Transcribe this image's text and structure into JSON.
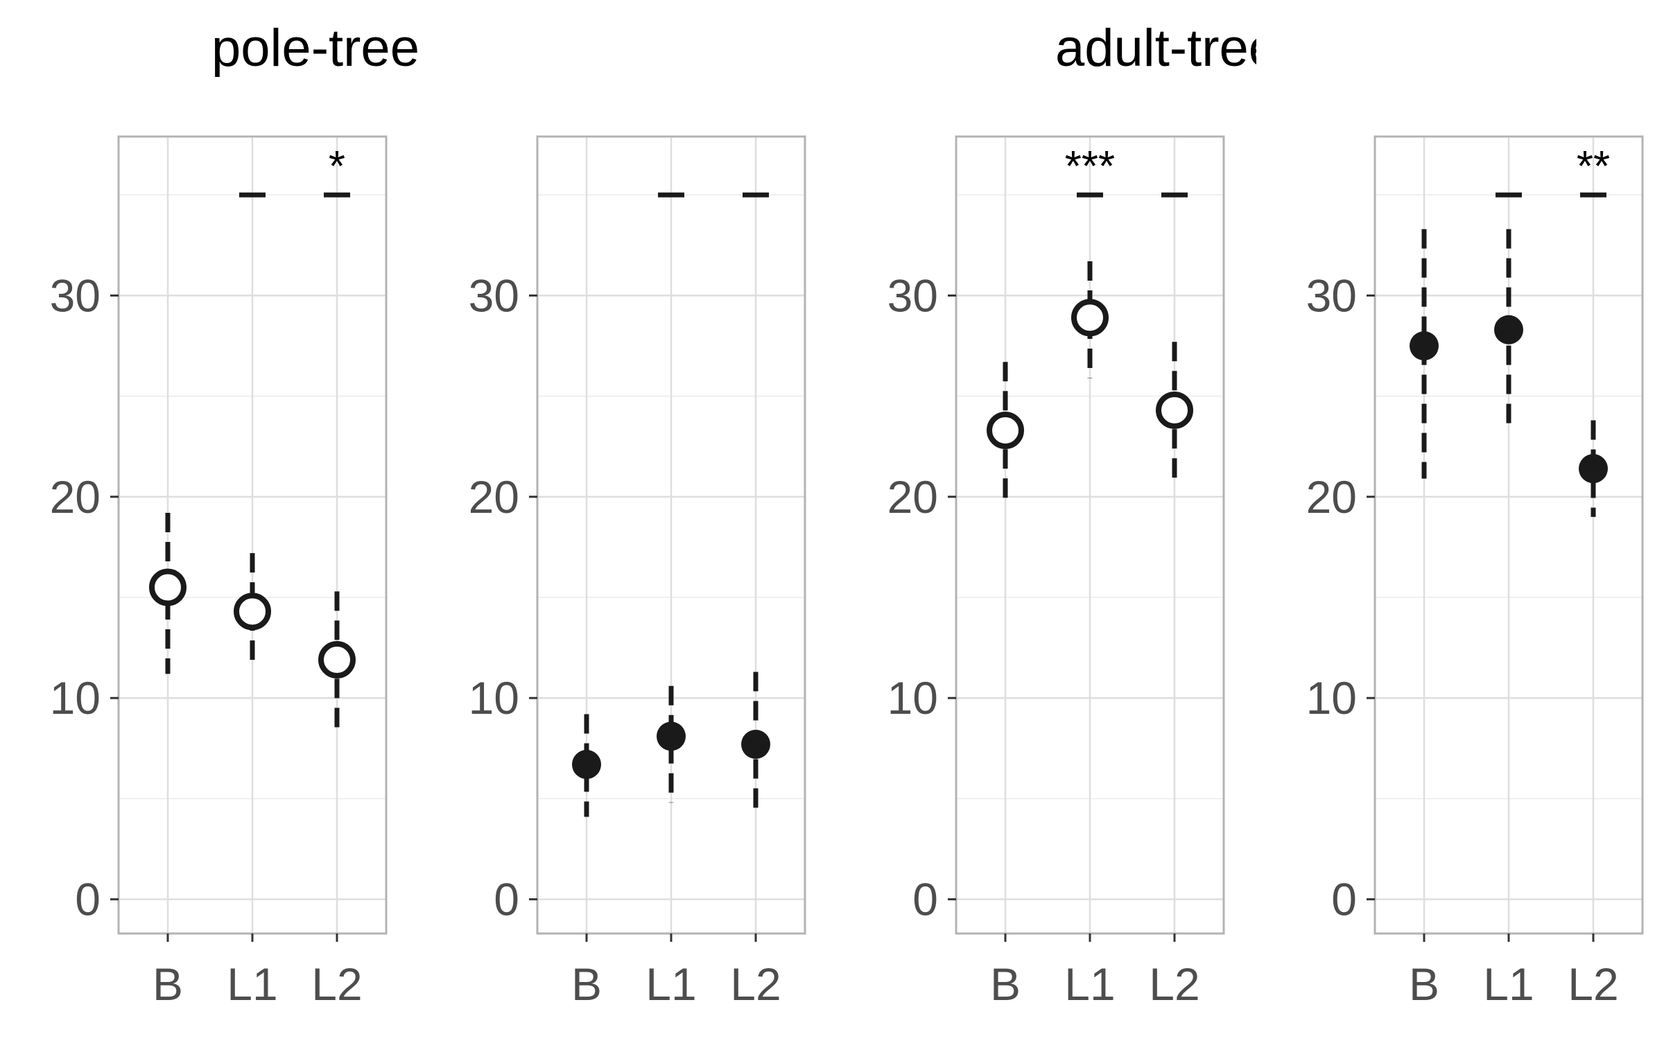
{
  "group_titles": [
    "pole-tree",
    "adult-tree"
  ],
  "chart_data": {
    "type": "scatter",
    "xlabel": "",
    "ylabel": "",
    "categories": [
      "B",
      "L1",
      "L2"
    ],
    "ylim": [
      -1.7,
      37.9
    ],
    "y_ticks": [
      "0",
      "10",
      "20",
      "30"
    ],
    "grid": true,
    "panels": [
      {
        "group": "pole-tree",
        "marker": "open-circle",
        "points": [
          {
            "x": "B",
            "y": 15.5,
            "ci": [
              11.2,
              19.2
            ]
          },
          {
            "x": "L1",
            "y": 14.3,
            "ci": [
              11.5,
              17.2
            ]
          },
          {
            "x": "L2",
            "y": 11.9,
            "ci": [
              8.3,
              15.3
            ]
          }
        ],
        "comparisons": [
          {
            "x": "L1",
            "y": 35,
            "label": ""
          },
          {
            "x": "L2",
            "y": 35,
            "label": "*"
          }
        ]
      },
      {
        "group": "pole-tree",
        "marker": "filled-circle",
        "points": [
          {
            "x": "B",
            "y": 6.7,
            "ci": [
              4.1,
              9.2
            ]
          },
          {
            "x": "L1",
            "y": 8.1,
            "ci": [
              4.8,
              10.6
            ]
          },
          {
            "x": "L2",
            "y": 7.7,
            "ci": [
              4.1,
              11.3
            ]
          }
        ],
        "comparisons": [
          {
            "x": "L1",
            "y": 35,
            "label": ""
          },
          {
            "x": "L2",
            "y": 35,
            "label": ""
          }
        ]
      },
      {
        "group": "adult-tree",
        "marker": "open-circle",
        "points": [
          {
            "x": "B",
            "y": 23.3,
            "ci": [
              19.9,
              26.7
            ]
          },
          {
            "x": "L1",
            "y": 28.9,
            "ci": [
              25.9,
              31.7
            ]
          },
          {
            "x": "L2",
            "y": 24.3,
            "ci": [
              20.9,
              27.7
            ]
          }
        ],
        "comparisons": [
          {
            "x": "L1",
            "y": 35,
            "label": "***"
          },
          {
            "x": "L2",
            "y": 35,
            "label": ""
          }
        ]
      },
      {
        "group": "adult-tree",
        "marker": "filled-circle",
        "points": [
          {
            "x": "B",
            "y": 27.5,
            "ci": [
              20.9,
              33.3
            ]
          },
          {
            "x": "L1",
            "y": 28.3,
            "ci": [
              23.2,
              33.3
            ]
          },
          {
            "x": "L2",
            "y": 21.4,
            "ci": [
              19.0,
              23.8
            ]
          }
        ],
        "comparisons": [
          {
            "x": "L1",
            "y": 35,
            "label": ""
          },
          {
            "x": "L2",
            "y": 35,
            "label": "**"
          }
        ]
      }
    ]
  }
}
